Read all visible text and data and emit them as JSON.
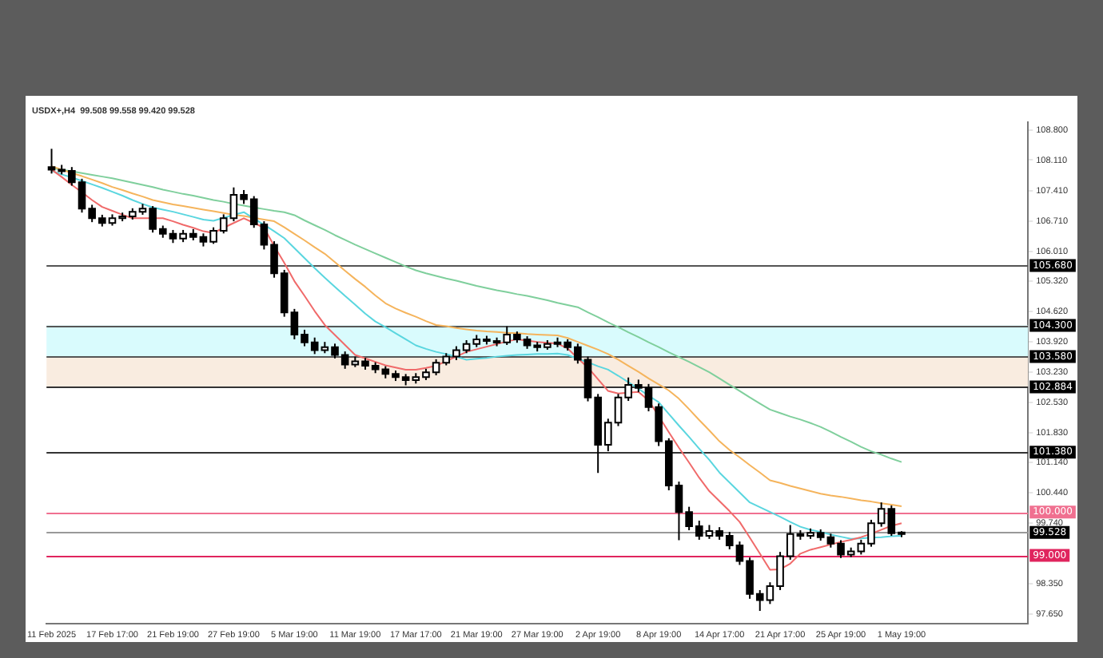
{
  "chart_data": {
    "type": "candlestick",
    "title": "USDX+,H4  99.508 99.558 99.420 99.528",
    "categories": [
      "11 Feb 2025",
      null,
      null,
      null,
      null,
      null,
      "17 Feb 17:00",
      null,
      null,
      null,
      null,
      null,
      "21 Feb 19:00",
      null,
      null,
      null,
      null,
      null,
      "27 Feb 19:00",
      null,
      null,
      null,
      null,
      null,
      "5 Mar 19:00",
      null,
      null,
      null,
      null,
      null,
      "11 Mar 19:00",
      null,
      null,
      null,
      null,
      null,
      "17 Mar 17:00",
      null,
      null,
      null,
      null,
      null,
      "21 Mar 19:00",
      null,
      null,
      null,
      null,
      null,
      "27 Mar 19:00",
      null,
      null,
      null,
      null,
      null,
      "2 Apr 19:00",
      null,
      null,
      null,
      null,
      null,
      "8 Apr 19:00",
      null,
      null,
      null,
      null,
      null,
      "14 Apr 17:00",
      null,
      null,
      null,
      null,
      null,
      "21 Apr 17:00",
      null,
      null,
      null,
      null,
      null,
      "25 Apr 19:00",
      null,
      null,
      null,
      null,
      null,
      "1 May 19:00",
      null,
      null,
      null,
      null,
      null,
      null,
      null,
      null,
      null,
      null,
      null,
      null
    ],
    "ohlc": [
      [
        107.95,
        108.37,
        107.8,
        107.89
      ],
      [
        107.89,
        108.0,
        107.78,
        107.86
      ],
      [
        107.86,
        107.95,
        107.52,
        107.6
      ],
      [
        107.6,
        107.68,
        106.9,
        106.99
      ],
      [
        106.99,
        107.08,
        106.68,
        106.77
      ],
      [
        106.77,
        106.85,
        106.58,
        106.66
      ],
      [
        106.66,
        106.86,
        106.6,
        106.77
      ],
      [
        106.77,
        106.9,
        106.7,
        106.81
      ],
      [
        106.81,
        107.0,
        106.74,
        106.92
      ],
      [
        106.92,
        107.1,
        106.85,
        106.99
      ],
      [
        106.99,
        107.05,
        106.44,
        106.52
      ],
      [
        106.52,
        106.6,
        106.32,
        106.41
      ],
      [
        106.41,
        106.5,
        106.2,
        106.3
      ],
      [
        106.3,
        106.5,
        106.22,
        106.41
      ],
      [
        106.41,
        106.52,
        106.26,
        106.34
      ],
      [
        106.34,
        106.42,
        106.12,
        106.23
      ],
      [
        106.23,
        106.56,
        106.18,
        106.48
      ],
      [
        106.48,
        106.86,
        106.42,
        106.77
      ],
      [
        106.77,
        107.48,
        106.7,
        107.31
      ],
      [
        107.31,
        107.42,
        107.1,
        107.21
      ],
      [
        107.21,
        107.28,
        106.55,
        106.63
      ],
      [
        106.63,
        106.7,
        106.05,
        106.16
      ],
      [
        106.16,
        106.24,
        105.4,
        105.5
      ],
      [
        105.5,
        105.58,
        104.5,
        104.6
      ],
      [
        104.6,
        104.68,
        103.98,
        104.09
      ],
      [
        104.09,
        104.2,
        103.82,
        103.91
      ],
      [
        103.91,
        104.02,
        103.64,
        103.73
      ],
      [
        103.73,
        103.92,
        103.66,
        103.8
      ],
      [
        103.8,
        103.88,
        103.54,
        103.62
      ],
      [
        103.62,
        103.7,
        103.3,
        103.4
      ],
      [
        103.4,
        103.58,
        103.34,
        103.47
      ],
      [
        103.47,
        103.55,
        103.28,
        103.37
      ],
      [
        103.37,
        103.45,
        103.2,
        103.29
      ],
      [
        103.29,
        103.36,
        103.08,
        103.18
      ],
      [
        103.18,
        103.26,
        103.02,
        103.11
      ],
      [
        103.11,
        103.18,
        102.92,
        103.04
      ],
      [
        103.04,
        103.2,
        102.96,
        103.11
      ],
      [
        103.11,
        103.3,
        103.04,
        103.22
      ],
      [
        103.22,
        103.52,
        103.15,
        103.44
      ],
      [
        103.44,
        103.66,
        103.38,
        103.58
      ],
      [
        103.58,
        103.82,
        103.5,
        103.73
      ],
      [
        103.73,
        103.96,
        103.66,
        103.87
      ],
      [
        103.87,
        104.08,
        103.8,
        103.98
      ],
      [
        103.98,
        104.06,
        103.86,
        103.94
      ],
      [
        103.94,
        104.02,
        103.82,
        103.91
      ],
      [
        103.91,
        104.28,
        103.85,
        104.09
      ],
      [
        104.09,
        104.16,
        103.9,
        103.98
      ],
      [
        103.98,
        104.05,
        103.76,
        103.84
      ],
      [
        103.84,
        103.92,
        103.7,
        103.8
      ],
      [
        103.8,
        103.96,
        103.74,
        103.87
      ],
      [
        103.87,
        104.02,
        103.8,
        103.91
      ],
      [
        103.91,
        103.98,
        103.72,
        103.8
      ],
      [
        103.8,
        103.88,
        103.42,
        103.51
      ],
      [
        103.51,
        103.58,
        102.55,
        102.64
      ],
      [
        102.64,
        102.72,
        100.9,
        101.55
      ],
      [
        101.55,
        102.15,
        101.4,
        102.06
      ],
      [
        102.06,
        102.72,
        101.98,
        102.64
      ],
      [
        102.64,
        103.1,
        102.56,
        102.93
      ],
      [
        102.93,
        103.05,
        102.76,
        102.86
      ],
      [
        102.86,
        102.95,
        102.32,
        102.42
      ],
      [
        102.42,
        102.5,
        101.52,
        101.63
      ],
      [
        101.63,
        101.7,
        100.5,
        100.61
      ],
      [
        100.61,
        100.7,
        99.35,
        100.0
      ],
      [
        100.0,
        100.12,
        99.58,
        99.67
      ],
      [
        99.67,
        99.8,
        99.36,
        99.45
      ],
      [
        99.45,
        99.7,
        99.38,
        99.56
      ],
      [
        99.56,
        99.65,
        99.36,
        99.45
      ],
      [
        99.45,
        99.54,
        99.14,
        99.23
      ],
      [
        99.23,
        99.32,
        98.78,
        98.87
      ],
      [
        98.87,
        98.95,
        98.0,
        98.11
      ],
      [
        98.11,
        98.2,
        97.72,
        97.97
      ],
      [
        97.97,
        98.38,
        97.88,
        98.29
      ],
      [
        98.29,
        99.08,
        98.2,
        98.98
      ],
      [
        98.98,
        99.7,
        98.9,
        99.49
      ],
      [
        99.49,
        99.58,
        99.36,
        99.45
      ],
      [
        99.45,
        99.62,
        99.38,
        99.52
      ],
      [
        99.52,
        99.6,
        99.34,
        99.42
      ],
      [
        99.42,
        99.5,
        99.18,
        99.27
      ],
      [
        99.27,
        99.35,
        98.94,
        99.02
      ],
      [
        99.02,
        99.18,
        98.96,
        99.09
      ],
      [
        99.09,
        99.36,
        99.02,
        99.27
      ],
      [
        99.27,
        99.82,
        99.2,
        99.74
      ],
      [
        99.74,
        100.22,
        99.66,
        100.07
      ],
      [
        100.07,
        100.15,
        99.45,
        99.51
      ],
      [
        99.508,
        99.558,
        99.42,
        99.528
      ],
      null,
      null,
      null,
      null,
      null,
      null,
      null,
      null,
      null,
      null,
      null,
      null
    ],
    "series": [
      {
        "type": "line",
        "color": "#f06a6a",
        "values": [
          107.89,
          107.72,
          107.54,
          107.37,
          107.19,
          107.03,
          106.94,
          106.85,
          106.77,
          106.77,
          106.77,
          106.77,
          106.7,
          106.62,
          106.55,
          106.47,
          106.43,
          106.55,
          106.66,
          106.77,
          106.66,
          106.55,
          106.13,
          105.74,
          105.32,
          104.98,
          104.63,
          104.31,
          104.08,
          103.85,
          103.62,
          103.54,
          103.46,
          103.38,
          103.33,
          103.28,
          103.28,
          103.32,
          103.37,
          103.48,
          103.58,
          103.69,
          103.75,
          103.81,
          103.87,
          103.93,
          103.98,
          103.95,
          103.92,
          103.9,
          103.88,
          103.77,
          103.54,
          103.33,
          103.06,
          102.79,
          102.73,
          102.75,
          102.77,
          102.57,
          102.21,
          101.84,
          101.48,
          101.14,
          100.79,
          100.48,
          100.25,
          100.02,
          99.77,
          99.41,
          99.04,
          98.67,
          98.68,
          98.81,
          99.04,
          99.13,
          99.19,
          99.25,
          99.31,
          99.36,
          99.42,
          99.5,
          99.59,
          99.68,
          99.74,
          null,
          null,
          null,
          null,
          null,
          null,
          null,
          null,
          null,
          null,
          null,
          null
        ]
      },
      {
        "type": "line",
        "color": "#5ad6df",
        "values": [
          107.86,
          107.78,
          107.71,
          107.63,
          107.55,
          107.47,
          107.38,
          107.29,
          107.19,
          107.1,
          107.02,
          106.97,
          106.92,
          106.86,
          106.8,
          106.74,
          106.71,
          106.78,
          106.85,
          106.91,
          106.76,
          106.62,
          106.47,
          106.31,
          106.08,
          105.85,
          105.62,
          105.4,
          105.19,
          104.98,
          104.78,
          104.57,
          104.39,
          104.26,
          104.12,
          103.98,
          103.84,
          103.76,
          103.69,
          103.64,
          103.58,
          103.51,
          103.53,
          103.55,
          103.58,
          103.6,
          103.62,
          103.63,
          103.64,
          103.64,
          103.65,
          103.62,
          103.53,
          103.45,
          103.36,
          103.28,
          103.14,
          102.99,
          102.84,
          102.68,
          102.53,
          102.26,
          101.99,
          101.73,
          101.46,
          101.2,
          100.91,
          100.68,
          100.45,
          100.22,
          100.11,
          100.0,
          99.89,
          99.77,
          99.66,
          99.59,
          99.54,
          99.48,
          99.43,
          99.38,
          99.39,
          99.41,
          99.42,
          99.44,
          99.45,
          null,
          null,
          null,
          null,
          null,
          null,
          null,
          null,
          null,
          null,
          null,
          null
        ]
      },
      {
        "type": "line",
        "color": "#f5b45c",
        "values": [
          107.97,
          107.89,
          107.81,
          107.74,
          107.66,
          107.58,
          107.49,
          107.42,
          107.34,
          107.27,
          107.19,
          107.14,
          107.09,
          107.05,
          107.01,
          106.97,
          106.93,
          106.89,
          106.85,
          106.82,
          106.78,
          106.74,
          106.7,
          106.56,
          106.41,
          106.26,
          106.1,
          105.95,
          105.76,
          105.56,
          105.37,
          105.19,
          104.99,
          104.81,
          104.69,
          104.59,
          104.5,
          104.4,
          104.31,
          104.28,
          104.24,
          104.21,
          104.18,
          104.16,
          104.15,
          104.13,
          104.12,
          104.1,
          104.09,
          104.08,
          104.07,
          104.01,
          103.92,
          103.83,
          103.74,
          103.64,
          103.51,
          103.37,
          103.23,
          103.08,
          102.94,
          102.8,
          102.61,
          102.37,
          102.12,
          101.88,
          101.63,
          101.43,
          101.26,
          101.08,
          100.91,
          100.73,
          100.67,
          100.6,
          100.54,
          100.48,
          100.42,
          100.38,
          100.35,
          100.31,
          100.27,
          100.24,
          100.2,
          100.17,
          100.13,
          null,
          null,
          null,
          null,
          null,
          null,
          null,
          null,
          null,
          null,
          null,
          null
        ]
      },
      {
        "type": "line",
        "color": "#7fcf9c",
        "values": [
          107.93,
          107.89,
          107.85,
          107.81,
          107.77,
          107.73,
          107.69,
          107.64,
          107.59,
          107.54,
          107.49,
          107.43,
          107.38,
          107.33,
          107.29,
          107.24,
          107.19,
          107.15,
          107.1,
          107.06,
          107.02,
          106.98,
          106.94,
          106.91,
          106.84,
          106.72,
          106.61,
          106.5,
          106.38,
          106.27,
          106.16,
          106.06,
          105.96,
          105.86,
          105.76,
          105.66,
          105.57,
          105.5,
          105.44,
          105.38,
          105.33,
          105.27,
          105.21,
          105.16,
          105.11,
          105.07,
          105.02,
          104.98,
          104.93,
          104.88,
          104.82,
          104.77,
          104.72,
          104.6,
          104.49,
          104.37,
          104.26,
          104.14,
          104.03,
          103.91,
          103.8,
          103.68,
          103.57,
          103.46,
          103.34,
          103.22,
          103.08,
          102.93,
          102.79,
          102.64,
          102.5,
          102.36,
          102.28,
          102.2,
          102.13,
          102.05,
          101.96,
          101.85,
          101.73,
          101.62,
          101.5,
          101.4,
          101.32,
          101.23,
          101.15,
          null,
          null,
          null,
          null,
          null,
          null,
          null,
          null,
          null,
          null,
          null,
          null
        ]
      }
    ],
    "ylim": [
      97.43,
      108.98
    ],
    "yticks": [
      {
        "value": 108.8,
        "label": "108.800"
      },
      {
        "value": 108.11,
        "label": "108.110"
      },
      {
        "value": 107.41,
        "label": "107.410"
      },
      {
        "value": 106.71,
        "label": "106.710"
      },
      {
        "value": 106.01,
        "label": "106.010"
      },
      {
        "value": 105.32,
        "label": "105.320"
      },
      {
        "value": 104.62,
        "label": "104.620"
      },
      {
        "value": 103.92,
        "label": "103.920"
      },
      {
        "value": 103.23,
        "label": "103.230"
      },
      {
        "value": 102.53,
        "label": "102.530"
      },
      {
        "value": 101.83,
        "label": "101.830"
      },
      {
        "value": 101.14,
        "label": "101.140"
      },
      {
        "value": 100.44,
        "label": "100.440"
      },
      {
        "value": 99.74,
        "label": "99.740"
      },
      {
        "value": 98.35,
        "label": "98.350"
      },
      {
        "value": 97.65,
        "label": "97.650"
      }
    ],
    "bands": [
      {
        "axis": "y",
        "from": 103.58,
        "to": 104.3,
        "color": "#d9fbfd"
      },
      {
        "axis": "y",
        "from": 102.884,
        "to": 103.58,
        "color": "#f9ece0"
      }
    ],
    "ref_lines": [
      {
        "axis": "y",
        "value": 105.68,
        "label": "105.680",
        "color": "#555555"
      },
      {
        "axis": "y",
        "value": 104.3,
        "label": "104.300",
        "color": "#555555"
      },
      {
        "axis": "y",
        "value": 103.58,
        "label": "103.580",
        "color": "#555555"
      },
      {
        "axis": "y",
        "value": 102.884,
        "label": "102.884",
        "color": "#333333"
      },
      {
        "axis": "y",
        "value": 101.38,
        "label": "101.380",
        "color": "#333333"
      },
      {
        "axis": "y",
        "value": 100.0,
        "label": "100.000",
        "color": "#f07090"
      },
      {
        "axis": "y",
        "value": 99.528,
        "label": "99.528",
        "color": "#999999"
      },
      {
        "axis": "y",
        "value": 99.0,
        "label": "99.000",
        "color": "#e0245e"
      }
    ],
    "grid": false,
    "legend": false
  }
}
